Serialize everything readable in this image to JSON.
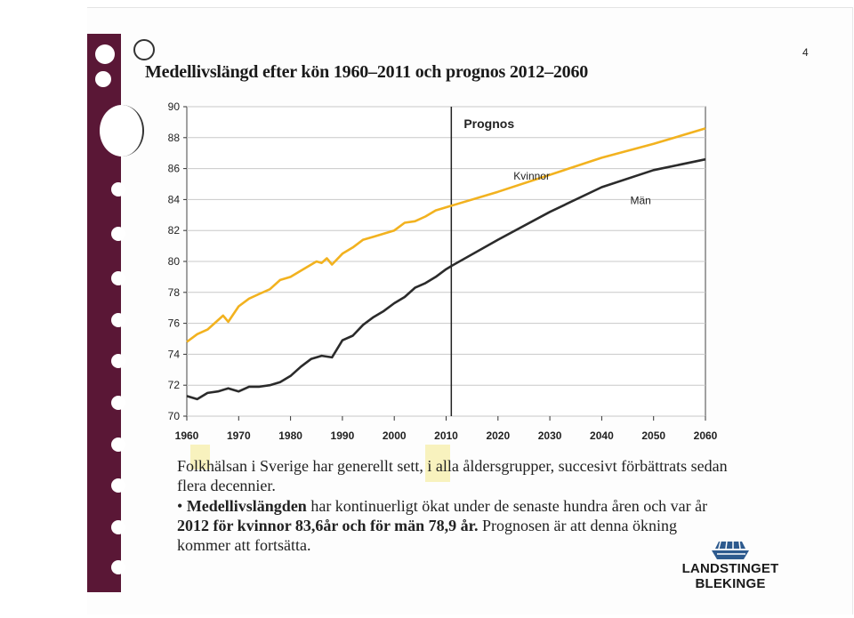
{
  "page": {
    "number": "4"
  },
  "slide": {
    "title": "Medellivslängd efter kön 1960–2011 och prognos 2012–2060"
  },
  "chart_data": {
    "type": "line",
    "xlim": [
      1960,
      2060
    ],
    "ylim": [
      70,
      90
    ],
    "x_ticks": [
      "1960",
      "1970",
      "1980",
      "1990",
      "2000",
      "2010",
      "2020",
      "2030",
      "2040",
      "2050",
      "2060"
    ],
    "y_ticks": [
      "70",
      "72",
      "74",
      "76",
      "78",
      "80",
      "82",
      "84",
      "86",
      "88",
      "90"
    ],
    "forecast_start": 2011,
    "forecast_label": "Prognos",
    "grid": true,
    "series": [
      {
        "name": "Kvinnor",
        "color": "#f2b21f",
        "points": [
          [
            1960,
            74.8
          ],
          [
            1962,
            75.3
          ],
          [
            1964,
            75.6
          ],
          [
            1966,
            76.2
          ],
          [
            1967,
            76.5
          ],
          [
            1968,
            76.1
          ],
          [
            1970,
            77.1
          ],
          [
            1972,
            77.6
          ],
          [
            1974,
            77.9
          ],
          [
            1976,
            78.2
          ],
          [
            1978,
            78.8
          ],
          [
            1980,
            79.0
          ],
          [
            1982,
            79.4
          ],
          [
            1984,
            79.8
          ],
          [
            1985,
            80.0
          ],
          [
            1986,
            79.9
          ],
          [
            1987,
            80.2
          ],
          [
            1988,
            79.8
          ],
          [
            1990,
            80.5
          ],
          [
            1992,
            80.9
          ],
          [
            1994,
            81.4
          ],
          [
            1996,
            81.6
          ],
          [
            1998,
            81.8
          ],
          [
            2000,
            82.0
          ],
          [
            2002,
            82.5
          ],
          [
            2004,
            82.6
          ],
          [
            2006,
            82.9
          ],
          [
            2008,
            83.3
          ],
          [
            2010,
            83.5
          ],
          [
            2011,
            83.6
          ],
          [
            2020,
            84.5
          ],
          [
            2030,
            85.6
          ],
          [
            2040,
            86.7
          ],
          [
            2050,
            87.6
          ],
          [
            2060,
            88.6
          ]
        ]
      },
      {
        "name": "Män",
        "color": "#2b2b2b",
        "points": [
          [
            1960,
            71.3
          ],
          [
            1962,
            71.1
          ],
          [
            1964,
            71.5
          ],
          [
            1966,
            71.6
          ],
          [
            1968,
            71.8
          ],
          [
            1970,
            71.6
          ],
          [
            1972,
            71.9
          ],
          [
            1974,
            71.9
          ],
          [
            1976,
            72.0
          ],
          [
            1978,
            72.2
          ],
          [
            1980,
            72.6
          ],
          [
            1982,
            73.2
          ],
          [
            1984,
            73.7
          ],
          [
            1986,
            73.9
          ],
          [
            1988,
            73.8
          ],
          [
            1990,
            74.9
          ],
          [
            1992,
            75.2
          ],
          [
            1994,
            75.9
          ],
          [
            1996,
            76.4
          ],
          [
            1998,
            76.8
          ],
          [
            2000,
            77.3
          ],
          [
            2002,
            77.7
          ],
          [
            2004,
            78.3
          ],
          [
            2006,
            78.6
          ],
          [
            2008,
            79.0
          ],
          [
            2010,
            79.5
          ],
          [
            2011,
            79.7
          ],
          [
            2020,
            81.4
          ],
          [
            2030,
            83.2
          ],
          [
            2040,
            84.8
          ],
          [
            2050,
            85.9
          ],
          [
            2060,
            86.6
          ]
        ]
      }
    ]
  },
  "body": {
    "paragraph1": "Folkhälsan i Sverige har generellt sett, i alla åldersgrupper, succesivt förbättrats sedan flera decennier.",
    "bullet": "•",
    "bold_lead": "Medellivslängden",
    "text_mid": " har kontinuerligt ökat under de senaste hundra åren och var år ",
    "bold_stats": "2012 för kvinnor 83,6år och för män 78,9 år.",
    "text_end": " Prognosen är att denna ökning kommer att fortsätta."
  },
  "logo": {
    "text": "LANDSTINGET BLEKINGE"
  }
}
